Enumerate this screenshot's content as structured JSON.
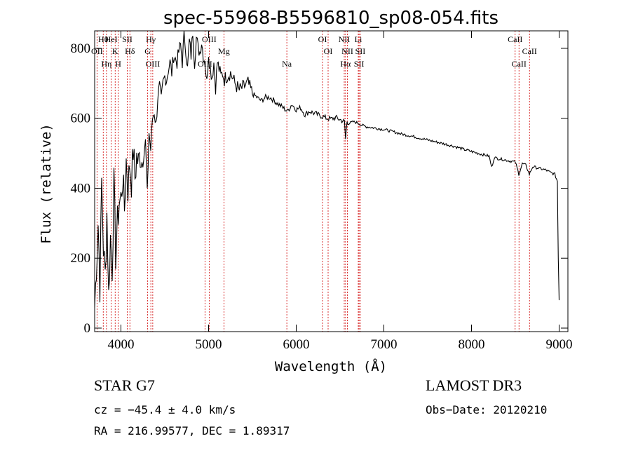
{
  "chart_data": {
    "type": "line",
    "title": "spec-55968-B5596810_sp08-054.fits",
    "xlabel": "Wavelength (Å)",
    "ylabel": "Flux (relative)",
    "xlim": [
      3700,
      9100
    ],
    "ylim": [
      -10,
      850
    ],
    "xticks": [
      4000,
      5000,
      6000,
      7000,
      8000,
      9000
    ],
    "yticks": [
      0,
      200,
      400,
      600,
      800
    ],
    "series": [
      {
        "name": "flux",
        "x": [
          3700,
          3720,
          3740,
          3760,
          3780,
          3800,
          3820,
          3840,
          3860,
          3880,
          3900,
          3920,
          3940,
          3960,
          3980,
          4000,
          4020,
          4040,
          4060,
          4080,
          4100,
          4120,
          4140,
          4160,
          4180,
          4200,
          4220,
          4240,
          4260,
          4280,
          4300,
          4320,
          4340,
          4360,
          4380,
          4400,
          4420,
          4440,
          4460,
          4480,
          4500,
          4520,
          4540,
          4560,
          4580,
          4600,
          4620,
          4640,
          4660,
          4680,
          4700,
          4720,
          4740,
          4760,
          4780,
          4800,
          4820,
          4840,
          4860,
          4880,
          4900,
          4920,
          4940,
          4960,
          4980,
          5000,
          5020,
          5040,
          5060,
          5080,
          5100,
          5120,
          5140,
          5160,
          5180,
          5200,
          5250,
          5300,
          5350,
          5400,
          5450,
          5500,
          5550,
          5600,
          5650,
          5700,
          5750,
          5800,
          5850,
          5900,
          5950,
          6000,
          6050,
          6100,
          6150,
          6200,
          6250,
          6300,
          6350,
          6400,
          6450,
          6500,
          6550,
          6563,
          6580,
          6600,
          6650,
          6700,
          6750,
          6800,
          6850,
          6900,
          6950,
          7000,
          7100,
          7200,
          7300,
          7400,
          7500,
          7600,
          7700,
          7800,
          7900,
          8000,
          8100,
          8200,
          8230,
          8260,
          8300,
          8400,
          8500,
          8540,
          8580,
          8620,
          8660,
          8700,
          8750,
          8800,
          8850,
          8900,
          8950,
          8980,
          8990,
          9000
        ],
        "y": [
          60,
          180,
          300,
          120,
          420,
          230,
          150,
          330,
          90,
          260,
          170,
          410,
          210,
          300,
          360,
          370,
          430,
          340,
          480,
          400,
          470,
          420,
          510,
          430,
          490,
          470,
          500,
          480,
          530,
          520,
          380,
          560,
          510,
          600,
          620,
          580,
          660,
          690,
          650,
          700,
          720,
          710,
          740,
          760,
          730,
          780,
          770,
          760,
          790,
          810,
          760,
          840,
          800,
          740,
          820,
          780,
          850,
          760,
          830,
          800,
          790,
          820,
          780,
          760,
          700,
          790,
          740,
          720,
          760,
          690,
          760,
          740,
          720,
          730,
          710,
          720,
          730,
          700,
          680,
          690,
          700,
          670,
          660,
          650,
          660,
          660,
          650,
          640,
          630,
          620,
          640,
          625,
          630,
          610,
          620,
          615,
          610,
          605,
          600,
          598,
          602,
          596,
          590,
          540,
          592,
          585,
          590,
          587,
          580,
          576,
          574,
          572,
          570,
          568,
          562,
          555,
          550,
          544,
          538,
          532,
          526,
          520,
          512,
          505,
          498,
          492,
          460,
          488,
          485,
          480,
          475,
          440,
          470,
          466,
          440,
          462,
          458,
          455,
          452,
          445,
          440,
          420,
          200,
          80
        ]
      }
    ],
    "spectral_lines": [
      {
        "label": "Hθ",
        "wavelength": 3798
      },
      {
        "label": "OII",
        "wavelength": 3727
      },
      {
        "label": "Hη",
        "wavelength": 3835
      },
      {
        "label": "HeI",
        "wavelength": 3889
      },
      {
        "label": "K",
        "wavelength": 3934
      },
      {
        "label": "H",
        "wavelength": 3969
      },
      {
        "label": "SII",
        "wavelength": 4072
      },
      {
        "label": "Hδ",
        "wavelength": 4102
      },
      {
        "label": "OIII",
        "wavelength": 4363
      },
      {
        "label": "Hγ",
        "wavelength": 4341
      },
      {
        "label": "G",
        "wavelength": 4305
      },
      {
        "label": "OIII",
        "wavelength": 4959
      },
      {
        "label": "OIII",
        "wavelength": 5007
      },
      {
        "label": "Mg",
        "wavelength": 5175
      },
      {
        "label": "Na",
        "wavelength": 5893
      },
      {
        "label": "OI",
        "wavelength": 6300
      },
      {
        "label": "OI",
        "wavelength": 6364
      },
      {
        "label": "Hα",
        "wavelength": 6563
      },
      {
        "label": "NII",
        "wavelength": 6548
      },
      {
        "label": "NII",
        "wavelength": 6584
      },
      {
        "label": "SII",
        "wavelength": 6717
      },
      {
        "label": "Li",
        "wavelength": 6708
      },
      {
        "label": "SII",
        "wavelength": 6731
      },
      {
        "label": "CaII",
        "wavelength": 8542
      },
      {
        "label": "CaII",
        "wavelength": 8498
      },
      {
        "label": "CaII",
        "wavelength": 8662
      }
    ],
    "line_color": "#d00000",
    "spectrum_color": "#000000"
  },
  "info": {
    "classification": "STAR    G7",
    "survey": "LAMOST DR3",
    "redshift": "cz = −45.4 ± 4.0 km/s",
    "obs_date": "Obs−Date: 20120210",
    "coords": "RA = 216.99577, DEC =    1.89317"
  }
}
